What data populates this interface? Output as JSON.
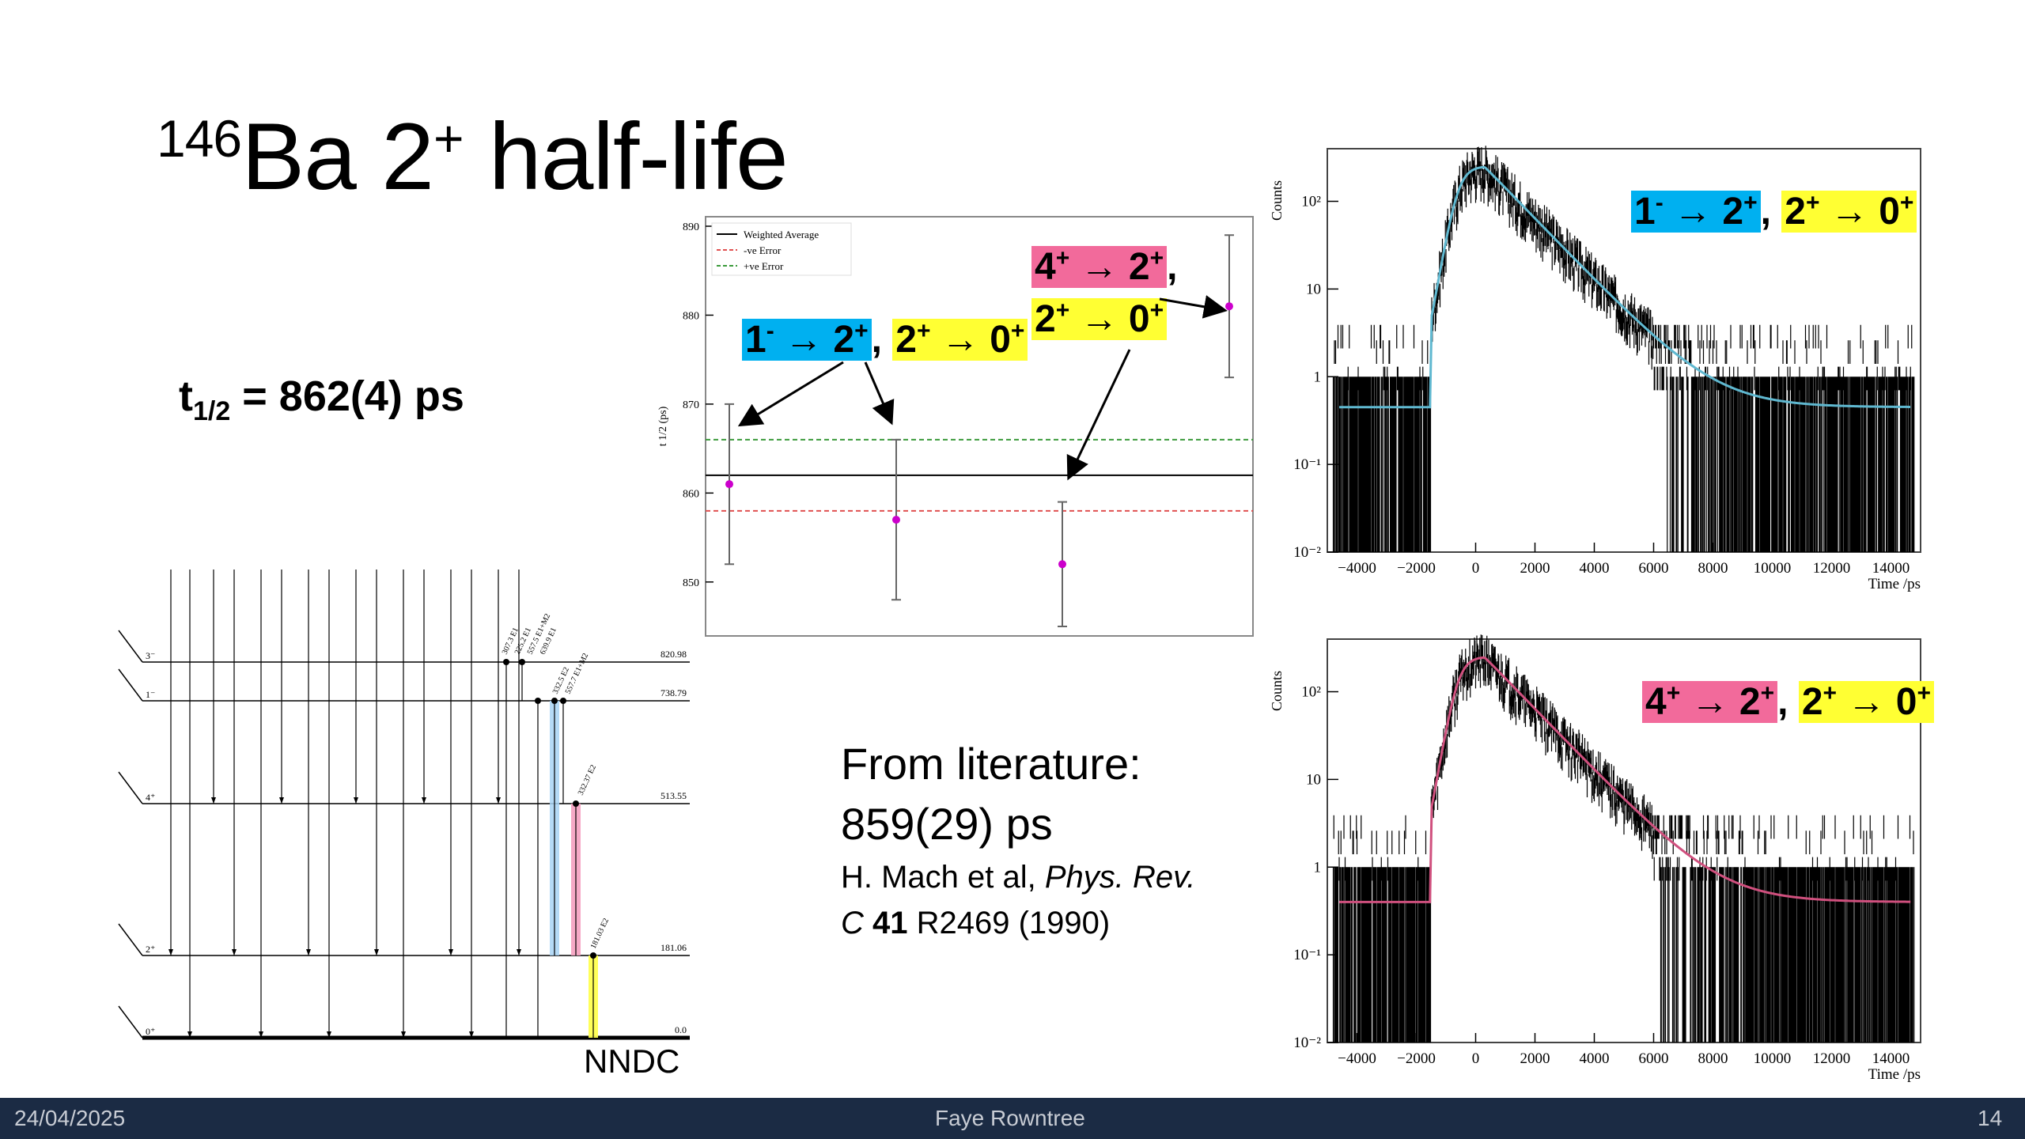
{
  "slide": {
    "title_sup": "146",
    "title_main": "Ba 2",
    "title_sup2": "+",
    "title_rest": " half-life",
    "result_t": "t",
    "result_sub": "1/2",
    "result_val": " = 862(4) ps",
    "lit_line1": "From literature:",
    "lit_line2": "859(29) ps",
    "lit_line3a": "H. Mach et al, ",
    "lit_line3b": "Phys. Rev.",
    "lit_line4a": "C",
    "lit_line4b": " 41",
    "lit_line4c": " R2469 (1990)",
    "nndc": "NNDC"
  },
  "labels": {
    "one_minus": "1",
    "minus": "-",
    "plus": "+",
    "four": "4",
    "two": "2",
    "zero": "0",
    "arrow": " → ",
    "comma": ","
  },
  "footer": {
    "date": "24/04/2025",
    "author": "Faye Rowntree",
    "page": "14"
  },
  "colors": {
    "blue_hl": "#00b0f0",
    "yellow_hl": "#ffff33",
    "pink_hl": "#f26a9b",
    "footer_bg": "#1b2b44",
    "fit_blue": "#5fb8d0",
    "fit_pink": "#d0507e",
    "point": "#cc00cc"
  },
  "chart_data": [
    {
      "type": "scatter",
      "ylabel": "t 1/2 (ps)",
      "ylim": [
        845,
        890
      ],
      "yticks": [
        850,
        860,
        870,
        880,
        890
      ],
      "legend": [
        "Weighted Average",
        "-ve Error",
        "+ve Error"
      ],
      "legend_placement": "top-left",
      "average": 862,
      "neg_error": 858,
      "pos_error": 866,
      "points": [
        {
          "value": 861,
          "err_low": 852,
          "err_high": 870
        },
        {
          "value": 857,
          "err_low": 848,
          "err_high": 866
        },
        {
          "value": 852,
          "err_low": 845,
          "err_high": 859
        },
        {
          "value": 881,
          "err_low": 873,
          "err_high": 889
        }
      ]
    },
    {
      "type": "line",
      "xlabel": "Time /ps",
      "ylabel": "Counts",
      "log_y": true,
      "xlim": [
        -5000,
        15000
      ],
      "xticks": [
        -4000,
        -2000,
        0,
        2000,
        4000,
        6000,
        8000,
        10000,
        12000,
        14000
      ],
      "yticks": [
        "10⁻²",
        "10⁻¹",
        "1",
        "10",
        "10²"
      ],
      "series": [
        {
          "name": "fit",
          "peak_x": 300,
          "peak_counts": 250,
          "baseline": 0.45,
          "color": "#5fb8d0"
        }
      ]
    },
    {
      "type": "line",
      "xlabel": "Time /ps",
      "ylabel": "Counts",
      "log_y": true,
      "xlim": [
        -5000,
        15000
      ],
      "xticks": [
        -4000,
        -2000,
        0,
        2000,
        4000,
        6000,
        8000,
        10000,
        12000,
        14000
      ],
      "yticks": [
        "10⁻²",
        "10⁻¹",
        "1",
        "10",
        "10²"
      ],
      "series": [
        {
          "name": "fit",
          "peak_x": 300,
          "peak_counts": 250,
          "baseline": 0.4,
          "color": "#d0507e"
        }
      ]
    }
  ],
  "level_scheme": {
    "levels": [
      {
        "spin": "3⁻",
        "energy": "820.98"
      },
      {
        "spin": "1⁻",
        "energy": "738.79"
      },
      {
        "spin": "4⁺",
        "energy": "513.55"
      },
      {
        "spin": "2⁺",
        "energy": "181.06"
      },
      {
        "spin": "0⁺",
        "energy": "0.0"
      }
    ],
    "gammas": [
      "307.3 E1",
      "225.2 E1",
      "557.5 E1+M2",
      "639.9 E1",
      "332.5 E2",
      "557.7 E1+M2",
      "332.37 E2",
      "181.03 E2"
    ]
  }
}
